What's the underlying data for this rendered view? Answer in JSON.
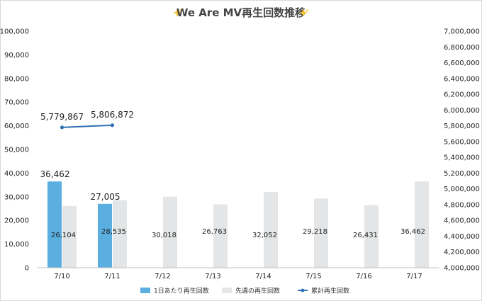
{
  "chart_data": {
    "type": "bar",
    "title": "We Are MV再生回数推移",
    "title_icon": "sparkle-emoji",
    "categories": [
      "7/10",
      "7/11",
      "7/12",
      "7/13",
      "7/14",
      "7/15",
      "7/16",
      "7/17"
    ],
    "series": [
      {
        "name": "1日あたり再生回数",
        "type": "bar",
        "axis": "left",
        "color": "#5aaee0",
        "values": [
          36462,
          27005,
          null,
          null,
          null,
          null,
          null,
          null
        ],
        "labels": [
          "36,462",
          "27,005",
          "",
          "",
          "",
          "",
          "",
          ""
        ]
      },
      {
        "name": "先週の再生回数",
        "type": "bar",
        "axis": "left",
        "color": "#e3e5e6",
        "values": [
          26104,
          28535,
          30018,
          26763,
          32052,
          29218,
          26431,
          36462
        ],
        "labels": [
          "26,104",
          "28,535",
          "30,018",
          "26,763",
          "32,052",
          "29,218",
          "26,431",
          "36,462"
        ]
      },
      {
        "name": "累計再生回数",
        "type": "line",
        "axis": "right",
        "color": "#2f6fb3",
        "values": [
          5779867,
          5806872,
          null,
          null,
          null,
          null,
          null,
          null
        ],
        "labels": [
          "5,779,867",
          "5,806,872",
          "",
          "",
          "",
          "",
          "",
          ""
        ]
      }
    ],
    "left_axis": {
      "ylim": [
        0,
        100000
      ],
      "ticks": [
        0,
        10000,
        20000,
        30000,
        40000,
        50000,
        60000,
        70000,
        80000,
        90000,
        100000
      ],
      "tick_labels": [
        "0",
        "10,000",
        "20,000",
        "30,000",
        "40,000",
        "50,000",
        "60,000",
        "70,000",
        "80,000",
        "90,000",
        "100,000"
      ]
    },
    "right_axis": {
      "ylim": [
        4000000,
        7000000
      ],
      "ticks": [
        4000000,
        4200000,
        4400000,
        4600000,
        4800000,
        5000000,
        5200000,
        5400000,
        5600000,
        5800000,
        6000000,
        6200000,
        6400000,
        6600000,
        6800000,
        7000000
      ],
      "tick_labels": [
        "4,000,000",
        "4,200,000",
        "4,400,000",
        "4,600,000",
        "4,800,000",
        "5,000,000",
        "5,200,000",
        "5,400,000",
        "5,600,000",
        "5,800,000",
        "6,000,000",
        "6,200,000",
        "6,400,000",
        "6,600,000",
        "6,800,000",
        "7,000,000"
      ]
    },
    "grid": false,
    "legend_position": "bottom"
  }
}
